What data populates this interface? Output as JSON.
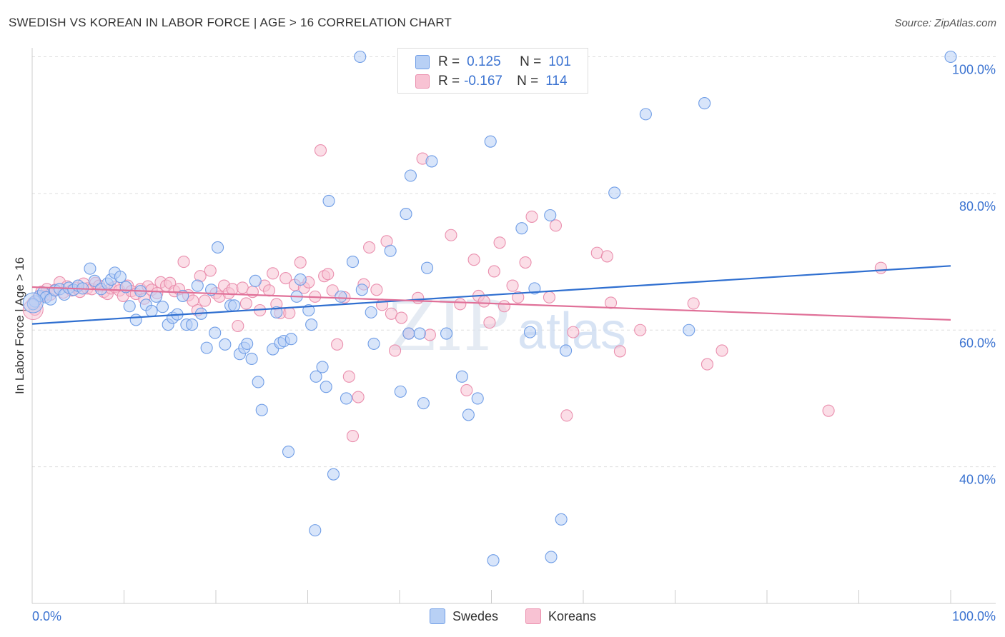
{
  "header": {
    "title": "SWEDISH VS KOREAN IN LABOR FORCE | AGE > 16 CORRELATION CHART",
    "source": "Source: ZipAtlas.com"
  },
  "colors": {
    "swedes_fill": "#b8d0f5",
    "swedes_stroke": "#6f9de6",
    "swedes_line": "#2f6fd0",
    "koreans_fill": "#f8c2d3",
    "koreans_stroke": "#ea8fae",
    "koreans_line": "#e07098",
    "axis_text": "#3b73d1",
    "grid": "#dddddd"
  },
  "legend": {
    "r_label": "R =",
    "n_label": "N =",
    "swedes": {
      "r": "0.125",
      "n": "101"
    },
    "koreans": {
      "r": "-0.167",
      "n": "114"
    }
  },
  "bottom_legend": {
    "swedes": "Swedes",
    "koreans": "Koreans"
  },
  "watermark": {
    "zip": "ZIP",
    "atlas": "atlas"
  },
  "chart_data": {
    "type": "scatter",
    "title": "SWEDISH VS KOREAN IN LABOR FORCE | AGE > 16 CORRELATION CHART",
    "xlabel": "",
    "ylabel": "In Labor Force | Age > 16",
    "xlim": [
      0,
      100
    ],
    "ylim": [
      20,
      100
    ],
    "x_tick_labels": [
      "0.0%",
      "100.0%"
    ],
    "y_ticks": [
      40,
      60,
      80,
      100
    ],
    "y_tick_labels": [
      "40.0%",
      "60.0%",
      "80.0%",
      "100.0%"
    ],
    "grid": "horizontal dashed",
    "legend_position": "top-center",
    "series": [
      {
        "name": "Swedes",
        "r": 0.125,
        "n": 101,
        "trend": {
          "x0": 0,
          "y0": 60.9,
          "x1": 100,
          "y1": 69.4
        },
        "points": [
          [
            0.3,
            64.2
          ],
          [
            0.8,
            65.0
          ],
          [
            1.2,
            65.5
          ],
          [
            1.5,
            64.8
          ],
          [
            2.0,
            64.5
          ],
          [
            2.5,
            65.8
          ],
          [
            3.0,
            66.0
          ],
          [
            3.5,
            65.2
          ],
          [
            4.0,
            66.2
          ],
          [
            4.5,
            65.9
          ],
          [
            5.0,
            66.5
          ],
          [
            5.5,
            66.1
          ],
          [
            6.3,
            69.0
          ],
          [
            6.8,
            67.2
          ],
          [
            7.5,
            66.0
          ],
          [
            8.2,
            66.8
          ],
          [
            8.6,
            67.4
          ],
          [
            9.0,
            68.4
          ],
          [
            9.6,
            67.8
          ],
          [
            10.2,
            66.3
          ],
          [
            10.6,
            63.5
          ],
          [
            11.3,
            61.5
          ],
          [
            11.8,
            65.7
          ],
          [
            12.4,
            63.7
          ],
          [
            13.0,
            62.8
          ],
          [
            13.5,
            64.9
          ],
          [
            14.2,
            63.4
          ],
          [
            14.8,
            60.8
          ],
          [
            15.3,
            61.8
          ],
          [
            15.8,
            62.3
          ],
          [
            16.4,
            65.0
          ],
          [
            16.8,
            60.8
          ],
          [
            17.4,
            60.8
          ],
          [
            18.0,
            66.5
          ],
          [
            18.4,
            62.4
          ],
          [
            19.0,
            57.4
          ],
          [
            19.5,
            65.9
          ],
          [
            19.9,
            59.6
          ],
          [
            20.2,
            72.1
          ],
          [
            21.0,
            57.9
          ],
          [
            21.6,
            63.6
          ],
          [
            22.0,
            63.6
          ],
          [
            22.6,
            56.5
          ],
          [
            23.1,
            57.4
          ],
          [
            23.4,
            58.0
          ],
          [
            23.9,
            55.8
          ],
          [
            24.3,
            67.2
          ],
          [
            24.6,
            52.4
          ],
          [
            25.0,
            48.3
          ],
          [
            26.2,
            57.2
          ],
          [
            26.6,
            62.6
          ],
          [
            27.0,
            58.1
          ],
          [
            27.4,
            58.4
          ],
          [
            27.9,
            42.2
          ],
          [
            28.2,
            58.7
          ],
          [
            28.8,
            64.9
          ],
          [
            29.2,
            67.4
          ],
          [
            30.1,
            62.9
          ],
          [
            30.4,
            60.8
          ],
          [
            30.9,
            53.2
          ],
          [
            31.6,
            54.6
          ],
          [
            32.0,
            51.7
          ],
          [
            32.3,
            78.9
          ],
          [
            32.8,
            38.9
          ],
          [
            33.6,
            64.9
          ],
          [
            34.2,
            50.0
          ],
          [
            34.9,
            70.0
          ],
          [
            35.9,
            65.9
          ],
          [
            36.9,
            62.6
          ],
          [
            37.2,
            58.0
          ],
          [
            39.0,
            71.6
          ],
          [
            40.1,
            51.0
          ],
          [
            40.7,
            77.0
          ],
          [
            41.0,
            59.5
          ],
          [
            41.2,
            82.6
          ],
          [
            42.2,
            59.5
          ],
          [
            42.6,
            49.3
          ],
          [
            43.0,
            69.1
          ],
          [
            43.5,
            84.7
          ],
          [
            45.1,
            59.5
          ],
          [
            46.8,
            53.2
          ],
          [
            47.5,
            47.6
          ],
          [
            48.5,
            50.0
          ],
          [
            49.9,
            87.6
          ],
          [
            53.3,
            74.9
          ],
          [
            54.2,
            59.7
          ],
          [
            54.7,
            66.1
          ],
          [
            56.4,
            76.8
          ],
          [
            57.6,
            32.3
          ],
          [
            58.1,
            57.0
          ],
          [
            63.4,
            80.1
          ],
          [
            66.8,
            91.6
          ],
          [
            71.5,
            60.0
          ],
          [
            73.2,
            93.2
          ],
          [
            35.7,
            100.0
          ],
          [
            100.0,
            100.0
          ],
          [
            30.8,
            30.7
          ],
          [
            50.2,
            26.3
          ],
          [
            56.5,
            26.8
          ],
          [
            0.1,
            63.8
          ]
        ]
      },
      {
        "name": "Koreans",
        "r": -0.167,
        "n": 114,
        "trend": {
          "x0": 0,
          "y0": 66.3,
          "x1": 100,
          "y1": 61.5
        },
        "points": [
          [
            0.3,
            63.0
          ],
          [
            0.7,
            64.8
          ],
          [
            1.0,
            65.6
          ],
          [
            1.3,
            65.0
          ],
          [
            1.6,
            66.0
          ],
          [
            2.0,
            65.2
          ],
          [
            2.5,
            65.9
          ],
          [
            3.0,
            67.0
          ],
          [
            3.4,
            65.5
          ],
          [
            3.8,
            66.4
          ],
          [
            4.3,
            65.8
          ],
          [
            4.8,
            66.2
          ],
          [
            5.2,
            65.6
          ],
          [
            5.6,
            66.8
          ],
          [
            6.0,
            66.1
          ],
          [
            6.5,
            66.0
          ],
          [
            6.9,
            66.9
          ],
          [
            7.3,
            66.5
          ],
          [
            7.8,
            65.6
          ],
          [
            8.2,
            65.3
          ],
          [
            8.6,
            66.1
          ],
          [
            9.0,
            66.3
          ],
          [
            9.5,
            65.8
          ],
          [
            9.9,
            65.0
          ],
          [
            10.4,
            66.5
          ],
          [
            10.8,
            65.7
          ],
          [
            11.3,
            65.3
          ],
          [
            11.8,
            66.0
          ],
          [
            12.2,
            64.6
          ],
          [
            12.6,
            66.4
          ],
          [
            13.0,
            65.9
          ],
          [
            13.6,
            65.4
          ],
          [
            14.0,
            67.0
          ],
          [
            14.6,
            66.5
          ],
          [
            15.0,
            66.9
          ],
          [
            15.5,
            65.7
          ],
          [
            16.0,
            66.0
          ],
          [
            16.5,
            70.0
          ],
          [
            17.0,
            65.1
          ],
          [
            17.5,
            64.3
          ],
          [
            18.0,
            62.9
          ],
          [
            18.3,
            67.9
          ],
          [
            18.8,
            64.3
          ],
          [
            19.4,
            68.7
          ],
          [
            20.0,
            65.4
          ],
          [
            20.4,
            64.9
          ],
          [
            20.9,
            66.5
          ],
          [
            21.4,
            65.4
          ],
          [
            21.8,
            66.0
          ],
          [
            22.4,
            60.6
          ],
          [
            22.9,
            66.2
          ],
          [
            23.3,
            63.9
          ],
          [
            24.0,
            65.6
          ],
          [
            24.8,
            62.9
          ],
          [
            25.3,
            66.5
          ],
          [
            25.8,
            65.8
          ],
          [
            26.2,
            68.3
          ],
          [
            26.6,
            63.8
          ],
          [
            27.0,
            62.5
          ],
          [
            27.6,
            67.6
          ],
          [
            28.0,
            62.5
          ],
          [
            28.6,
            66.6
          ],
          [
            29.2,
            69.9
          ],
          [
            29.6,
            66.2
          ],
          [
            30.1,
            67.0
          ],
          [
            30.8,
            64.9
          ],
          [
            31.4,
            86.3
          ],
          [
            31.8,
            67.9
          ],
          [
            32.2,
            68.2
          ],
          [
            32.7,
            65.8
          ],
          [
            33.2,
            57.9
          ],
          [
            34.0,
            64.8
          ],
          [
            34.5,
            53.2
          ],
          [
            34.9,
            44.5
          ],
          [
            35.5,
            50.2
          ],
          [
            36.1,
            66.7
          ],
          [
            36.7,
            72.1
          ],
          [
            37.5,
            65.9
          ],
          [
            38.1,
            63.7
          ],
          [
            38.6,
            73.0
          ],
          [
            39.1,
            62.4
          ],
          [
            39.5,
            57.0
          ],
          [
            40.2,
            61.8
          ],
          [
            41.0,
            59.5
          ],
          [
            42.0,
            64.7
          ],
          [
            42.5,
            85.1
          ],
          [
            43.3,
            59.3
          ],
          [
            45.6,
            73.9
          ],
          [
            46.6,
            63.8
          ],
          [
            47.3,
            51.2
          ],
          [
            48.1,
            70.3
          ],
          [
            48.6,
            65.0
          ],
          [
            49.2,
            64.2
          ],
          [
            49.8,
            61.1
          ],
          [
            50.3,
            68.6
          ],
          [
            50.9,
            72.8
          ],
          [
            51.4,
            63.5
          ],
          [
            52.3,
            66.5
          ],
          [
            52.9,
            64.8
          ],
          [
            53.7,
            69.9
          ],
          [
            54.4,
            76.6
          ],
          [
            56.3,
            64.8
          ],
          [
            57.0,
            75.3
          ],
          [
            58.2,
            47.5
          ],
          [
            58.9,
            59.7
          ],
          [
            61.5,
            71.3
          ],
          [
            62.6,
            70.8
          ],
          [
            63.0,
            64.0
          ],
          [
            64.0,
            56.9
          ],
          [
            66.2,
            60.0
          ],
          [
            72.0,
            63.9
          ],
          [
            73.5,
            55.0
          ],
          [
            75.1,
            57.0
          ],
          [
            86.7,
            48.2
          ],
          [
            92.4,
            69.1
          ],
          [
            0.1,
            64.0
          ]
        ]
      }
    ]
  }
}
